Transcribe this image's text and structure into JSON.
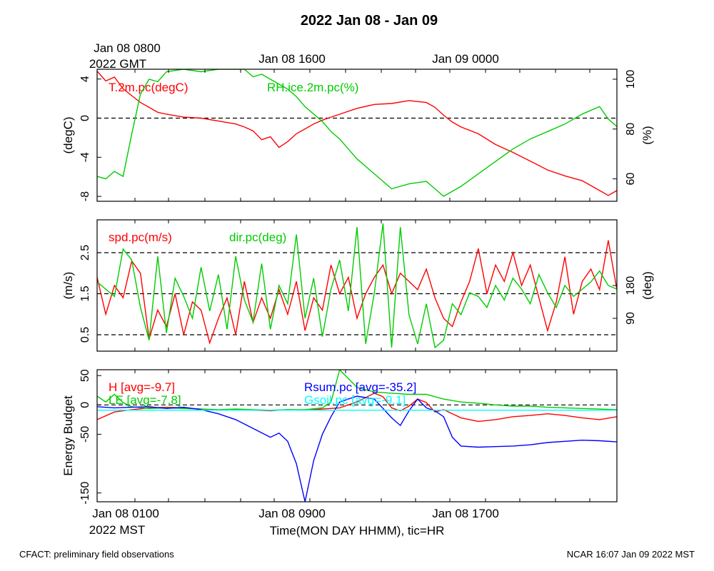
{
  "title": "2022 Jan 08 - Jan 09",
  "top_time_labels": [
    "Jan 08 0800",
    "Jan 08 1600",
    "Jan 09 0000"
  ],
  "top_zone": "2022 GMT",
  "bottom_time_labels": [
    "Jan 08 0100",
    "Jan 08 0900",
    "Jan 08 1700"
  ],
  "bottom_zone": "2022 MST",
  "xlabel": "Time(MON DAY HHMM), tic=HR",
  "footer_left": "CFACT: preliminary field observations",
  "footer_right": "NCAR 16:07 Jan 09 2022 MST",
  "colors": {
    "red": "#ff0000",
    "green": "#00cc00",
    "blue": "#0000ff",
    "cyan": "#00ffff"
  },
  "chart_data": [
    {
      "type": "line",
      "panel": "temperature-humidity",
      "xlim": [
        0,
        30
      ],
      "ylabel_left": "(degC)",
      "ylabel_right": "(%)",
      "ylim_left": [
        -8.5,
        5
      ],
      "ylim_right": [
        51,
        104
      ],
      "yticks_left": [
        "4",
        "0",
        "-4",
        "-8"
      ],
      "yticks_left_values": [
        4,
        0,
        -4,
        -8
      ],
      "yticks_right": [
        "100",
        "80",
        "60"
      ],
      "yticks_right_values": [
        100,
        80,
        60
      ],
      "ref_lines_left": [
        0
      ],
      "series": [
        {
          "name": "T.2m.pc(degC)",
          "color": "red",
          "axis": "left",
          "x": [
            0,
            0.5,
            1,
            1.5,
            2,
            2.5,
            3,
            3.5,
            4,
            5,
            6,
            7,
            8,
            8.5,
            9,
            9.5,
            10,
            10.5,
            11,
            11.5,
            12,
            12.5,
            13,
            13.5,
            14,
            15,
            16,
            17,
            18,
            19,
            19.5,
            20,
            20.5,
            21,
            22,
            23,
            24,
            25,
            26,
            27,
            28,
            29,
            29.5,
            30
          ],
          "y": [
            4.8,
            3.8,
            4.2,
            3,
            2.3,
            1.6,
            1.1,
            0.6,
            0.4,
            0.1,
            0,
            -0.3,
            -0.6,
            -0.9,
            -1.3,
            -2.2,
            -1.9,
            -3,
            -2.4,
            -1.6,
            -1.1,
            -0.6,
            -0.2,
            0.1,
            0.4,
            1,
            1.4,
            1.5,
            1.8,
            1.6,
            1.1,
            0.3,
            -0.4,
            -0.9,
            -1.6,
            -2.7,
            -3.5,
            -4.4,
            -5.3,
            -5.9,
            -6.4,
            -7.4,
            -7.9,
            -7.4
          ]
        },
        {
          "name": "RH.ice.2m.pc(%)",
          "color": "green",
          "axis": "right",
          "x": [
            0,
            0.5,
            1,
            1.5,
            2,
            2.5,
            3,
            3.5,
            4,
            5,
            6,
            7,
            8,
            8.5,
            9,
            9.5,
            10,
            10.5,
            11,
            11.5,
            12,
            12.5,
            13,
            13.5,
            14,
            15,
            16,
            17,
            18,
            19,
            19.5,
            20,
            20.5,
            21,
            22,
            23,
            24,
            25,
            26,
            27,
            28,
            29,
            29.5,
            30
          ],
          "y": [
            61,
            60,
            63,
            61,
            78,
            94,
            100,
            99,
            103,
            104,
            103,
            104,
            104,
            104,
            101,
            102,
            100,
            98,
            96,
            93,
            89,
            86,
            83,
            79,
            76,
            68,
            62,
            56,
            58,
            59,
            56,
            53,
            55,
            57,
            62,
            67,
            72,
            76,
            79,
            82,
            86,
            89,
            84,
            81
          ]
        }
      ]
    },
    {
      "type": "line",
      "panel": "wind",
      "xlim": [
        0,
        30
      ],
      "ylabel_left": "(m/s)",
      "ylabel_right": "(deg)",
      "ylim_left": [
        0.1,
        3.3
      ],
      "ylim_right": [
        0,
        360
      ],
      "yticks_left": [
        "2.5",
        "1.5",
        "0.5"
      ],
      "yticks_left_values": [
        2.5,
        1.5,
        0.5
      ],
      "yticks_right": [
        "180",
        "90"
      ],
      "yticks_right_values": [
        180,
        90
      ],
      "ref_lines_left": [
        2.5,
        1.5,
        0.5
      ],
      "series": [
        {
          "name": "spd.pc(m/s)",
          "color": "red",
          "axis": "left",
          "x": [
            0,
            0.5,
            1,
            1.5,
            2,
            2.5,
            3,
            3.5,
            4,
            4.5,
            5,
            5.5,
            6,
            6.5,
            7,
            7.5,
            8,
            8.5,
            9,
            9.5,
            10,
            10.5,
            11,
            11.5,
            12,
            12.5,
            13,
            13.5,
            14,
            14.5,
            15,
            15.5,
            16,
            16.5,
            17,
            17.5,
            18,
            18.5,
            19,
            19.5,
            20,
            20.5,
            21,
            21.5,
            22,
            22.5,
            23,
            23.5,
            24,
            24.5,
            25,
            25.5,
            26,
            26.5,
            27,
            27.5,
            28,
            28.5,
            29,
            29.5,
            30
          ],
          "y": [
            1.9,
            1,
            1.7,
            1.4,
            2.3,
            2,
            0.4,
            1.1,
            0.7,
            1.5,
            0.5,
            1.3,
            1.1,
            0.3,
            0.9,
            1.4,
            0.5,
            1.8,
            0.8,
            1.4,
            0.9,
            1.6,
            1,
            1.8,
            0.6,
            1.4,
            1.1,
            2.2,
            1.5,
            1.9,
            0.9,
            1.5,
            1.9,
            2.2,
            1.5,
            2,
            1.8,
            1.6,
            2.1,
            1.4,
            0.9,
            0.7,
            1.3,
            1.8,
            2.6,
            1.5,
            2.2,
            1.8,
            2.5,
            1.7,
            2.2,
            1.4,
            0.6,
            1.3,
            2.4,
            1,
            1.8,
            2.1,
            1.6,
            2.8,
            1.6
          ]
        },
        {
          "name": "dir.pc(deg)",
          "color": "green",
          "axis": "right",
          "x": [
            0,
            0.5,
            1,
            1.5,
            2,
            2.5,
            3,
            3.5,
            4,
            4.5,
            5,
            5.5,
            6,
            6.5,
            7,
            7.5,
            8,
            8.5,
            9,
            9.5,
            10,
            10.5,
            11,
            11.5,
            12,
            12.5,
            13,
            13.5,
            14,
            14.5,
            15,
            15.5,
            16,
            16.5,
            17,
            17.5,
            18,
            18.5,
            19,
            19.5,
            20,
            20.5,
            21,
            21.5,
            22,
            22.5,
            23,
            23.5,
            24,
            24.5,
            25,
            25.5,
            26,
            26.5,
            27,
            27.5,
            28,
            28.5,
            29,
            29.5,
            30
          ],
          "y": [
            190,
            170,
            150,
            280,
            250,
            120,
            30,
            260,
            50,
            200,
            150,
            90,
            230,
            110,
            210,
            60,
            260,
            140,
            80,
            240,
            60,
            180,
            130,
            320,
            90,
            200,
            40,
            170,
            250,
            110,
            340,
            20,
            160,
            350,
            10,
            340,
            100,
            20,
            130,
            10,
            30,
            130,
            100,
            160,
            150,
            120,
            180,
            140,
            200,
            170,
            130,
            210,
            160,
            120,
            180,
            150,
            170,
            190,
            220,
            180,
            170
          ]
        }
      ]
    },
    {
      "type": "line",
      "panel": "energy-budget",
      "xlim": [
        0,
        30
      ],
      "ylabel_left": "Energy Budget",
      "ylim_left": [
        -165,
        60
      ],
      "yticks_left": [
        "50",
        "0",
        "-50",
        "-150"
      ],
      "yticks_left_values": [
        50,
        0,
        -50,
        -150
      ],
      "ref_lines_left": [
        0
      ],
      "series": [
        {
          "name": "H [avg=-9.7]",
          "color": "red",
          "axis": "left",
          "x": [
            0,
            1,
            2,
            3,
            4,
            5,
            6,
            7,
            8,
            9,
            10,
            11,
            12,
            13,
            14,
            15,
            16,
            16.5,
            17,
            17.5,
            18,
            18.5,
            19,
            19.5,
            20,
            20.5,
            21,
            22,
            23,
            24,
            25,
            26,
            27,
            28,
            29,
            30
          ],
          "y": [
            -25,
            -12,
            -8,
            -5,
            -4,
            -5,
            -7,
            -9,
            -8,
            -9,
            -10,
            -8,
            -9,
            -7,
            -5,
            5,
            20,
            14,
            -5,
            -10,
            -2,
            10,
            4,
            -12,
            -8,
            -15,
            -22,
            -28,
            -25,
            -20,
            -18,
            -15,
            -18,
            -22,
            -25,
            -20
          ]
        },
        {
          "name": "LE [avg=-7.8]",
          "color": "green",
          "axis": "left",
          "x": [
            0,
            0.5,
            1,
            1.5,
            2,
            3,
            4,
            5,
            6,
            7,
            8,
            9,
            10,
            11,
            12,
            13,
            13.5,
            14,
            15,
            16,
            17,
            18,
            19,
            20,
            21,
            22,
            23,
            24,
            25,
            26,
            27,
            28,
            29,
            30
          ],
          "y": [
            15,
            5,
            18,
            4,
            -3,
            -6,
            -5,
            -6,
            -7,
            -8,
            -7,
            -8,
            -9,
            -8,
            -8,
            -5,
            5,
            60,
            30,
            22,
            20,
            18,
            18,
            10,
            5,
            3,
            0,
            -2,
            -2,
            -4,
            -5,
            -6,
            -7,
            -8
          ]
        },
        {
          "name": "Rsum.pc [avg=-35.2]",
          "color": "blue",
          "axis": "left",
          "x": [
            0,
            1,
            2,
            3,
            4,
            5,
            6,
            7,
            8,
            9,
            10,
            10.5,
            11,
            11.5,
            12,
            12.5,
            13,
            13.5,
            14,
            15,
            16,
            17,
            17.5,
            18,
            18.5,
            19,
            19.5,
            20,
            20.5,
            21,
            22,
            23,
            24,
            25,
            26,
            27,
            28,
            29,
            30
          ],
          "y": [
            -3,
            -5,
            -4,
            -3,
            -6,
            -4,
            -8,
            -15,
            -25,
            -40,
            -55,
            -48,
            -62,
            -100,
            -165,
            -95,
            -50,
            -20,
            5,
            15,
            10,
            -22,
            -35,
            -10,
            10,
            -5,
            -10,
            -20,
            -55,
            -70,
            -72,
            -71,
            -70,
            -68,
            -64,
            -62,
            -60,
            -61,
            -63
          ]
        },
        {
          "name": "Gsoil.pc [avg=-9.1]",
          "color": "cyan",
          "axis": "left",
          "x": [
            0,
            30
          ],
          "y": [
            -9,
            -9
          ]
        }
      ]
    }
  ]
}
